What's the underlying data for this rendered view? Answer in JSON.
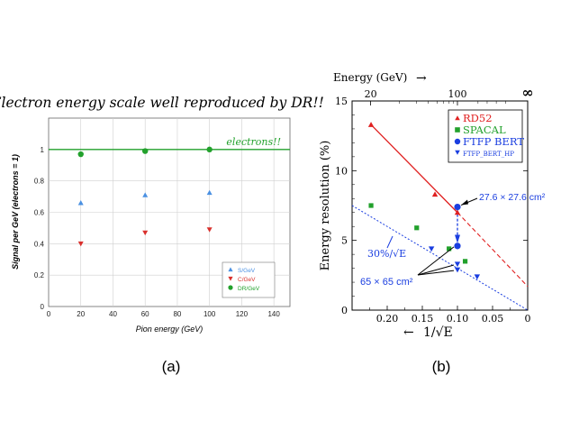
{
  "figure_captions": {
    "a": "(a)",
    "b": "(b)"
  },
  "colors": {
    "s": "#4a90e2",
    "c": "#d9302c",
    "dr": "#22a12c",
    "rd52": "#e02020",
    "spacal": "#22a12c",
    "ftfp": "#1a3ee0",
    "black": "#000000"
  },
  "chart_data": [
    {
      "id": "a",
      "type": "scatter",
      "title": "Electron energy scale well reproduced by DR!!",
      "xlabel": "Pion energy (GeV)",
      "ylabel": "Signal per GeV (electrons = 1)",
      "xlim": [
        0,
        150
      ],
      "ylim": [
        0,
        1.2
      ],
      "xticks": [
        0,
        20,
        40,
        60,
        80,
        100,
        120,
        140
      ],
      "yticks": [
        0,
        0.2,
        0.4,
        0.6,
        0.8,
        1
      ],
      "ytick_labels": [
        "0",
        "0.2",
        "0.4",
        "0.6",
        "0.8",
        "1"
      ],
      "reference_line": {
        "y": 1.0,
        "label": "electrons!!"
      },
      "legend_position": "bottom-right",
      "series": [
        {
          "name": "S/GeV",
          "marker": "triangle-up",
          "x": [
            20,
            60,
            100
          ],
          "y": [
            0.66,
            0.71,
            0.725
          ]
        },
        {
          "name": "C/GeV",
          "marker": "triangle-down",
          "x": [
            20,
            60,
            100
          ],
          "y": [
            0.4,
            0.47,
            0.49
          ]
        },
        {
          "name": "DR/GeV",
          "marker": "circle",
          "x": [
            20,
            60,
            100
          ],
          "y": [
            0.97,
            0.99,
            1.0
          ]
        }
      ]
    },
    {
      "id": "b",
      "type": "scatter",
      "xlabel": "1/√E",
      "xlabel_arrow": "←",
      "ylabel": "Energy resolution (%)",
      "top_axis_label": "Energy (GeV)",
      "top_axis_arrow": "→",
      "xlim": [
        0.25,
        0
      ],
      "ylim": [
        0,
        15
      ],
      "xticks": [
        0.2,
        0.15,
        0.1,
        0.05,
        0
      ],
      "xtick_labels": [
        "0.20",
        "0.15",
        "0.10",
        "0.05",
        "0"
      ],
      "yticks": [
        0,
        5,
        10,
        15
      ],
      "top_ticks": [
        {
          "E": 20,
          "label": "20"
        },
        {
          "E": 100,
          "label": "100"
        },
        {
          "E": "inf",
          "label": "∞"
        }
      ],
      "legend_position": "top-right",
      "series": [
        {
          "name": "RD52",
          "marker": "triangle-up",
          "x": [
            0.223,
            0.132,
            0.1
          ],
          "y": [
            13.3,
            8.3,
            7.0
          ]
        },
        {
          "name": "SPACAL",
          "marker": "square",
          "x": [
            0.223,
            0.158,
            0.112,
            0.089
          ],
          "y": [
            7.5,
            5.9,
            4.4,
            3.5
          ]
        },
        {
          "name": "FTFP BERT",
          "marker": "circle",
          "x": [
            0.1,
            0.1
          ],
          "y": [
            7.4,
            4.6
          ]
        },
        {
          "name": "FTFP_BERT_HP",
          "marker": "triangle-down",
          "x": [
            0.137,
            0.1,
            0.1,
            0.072
          ],
          "y": [
            4.4,
            3.3,
            2.9,
            2.4
          ]
        }
      ],
      "fit_lines": [
        {
          "name": "RD52 fit",
          "x": [
            0.223,
            0.1
          ],
          "y": [
            13.3,
            7.0
          ],
          "extrapolated_to": [
            0,
            1.7
          ]
        },
        {
          "name": "30%/√E",
          "x": [
            0.25,
            0
          ],
          "y": [
            7.5,
            0
          ]
        }
      ],
      "annotations": [
        {
          "text": "27.6 × 27.6 cm²"
        },
        {
          "text": "65 × 65 cm²"
        },
        {
          "text": "30%/√E"
        }
      ]
    }
  ]
}
